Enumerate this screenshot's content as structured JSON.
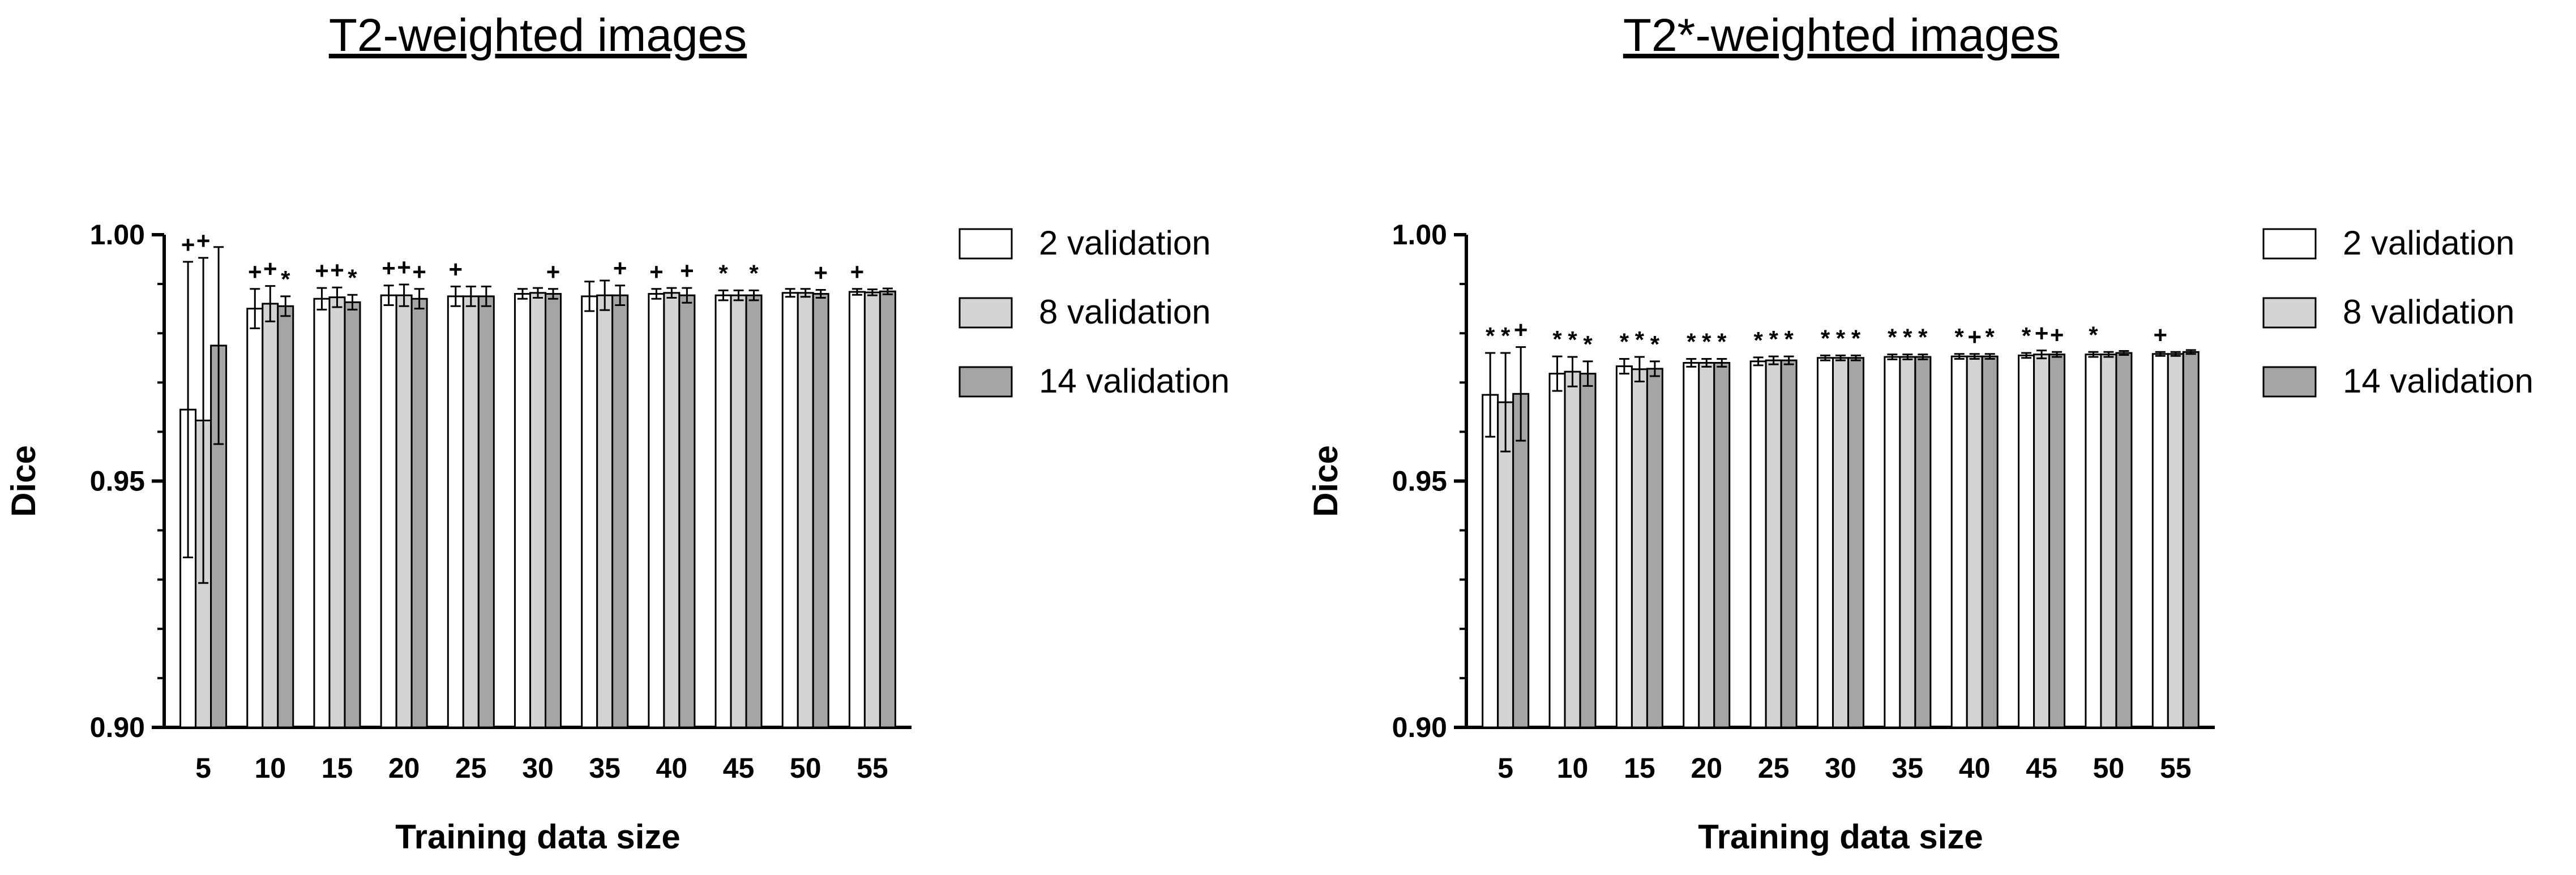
{
  "chart_data": [
    {
      "type": "bar",
      "title": "T2-weighted images",
      "xlabel": "Training data size",
      "ylabel": "Dice",
      "ylim": [
        0.9,
        1.0
      ],
      "yticks": [
        "0.90",
        "0.95",
        "1.00"
      ],
      "categories": [
        "5",
        "10",
        "15",
        "20",
        "25",
        "30",
        "35",
        "40",
        "45",
        "50",
        "55"
      ],
      "legend_position": "right",
      "series": [
        {
          "name": "2 validation",
          "color": "#ffffff",
          "values": [
            0.9645,
            0.985,
            0.987,
            0.9877,
            0.9875,
            0.988,
            0.9875,
            0.988,
            0.9877,
            0.9882,
            0.9884
          ],
          "errors": [
            0.03,
            0.004,
            0.0022,
            0.002,
            0.002,
            0.001,
            0.003,
            0.001,
            0.001,
            0.0008,
            0.0006
          ],
          "marks": [
            "+",
            "+",
            "+",
            "+",
            "+",
            "",
            "",
            "+",
            "*",
            "",
            "+"
          ]
        },
        {
          "name": "8 validation",
          "color": "#d3d3d3",
          "values": [
            0.9623,
            0.986,
            0.9873,
            0.9877,
            0.9875,
            0.9882,
            0.9877,
            0.9882,
            0.9877,
            0.9882,
            0.9883
          ],
          "errors": [
            0.033,
            0.0036,
            0.002,
            0.0022,
            0.002,
            0.001,
            0.003,
            0.001,
            0.001,
            0.0008,
            0.0006
          ],
          "marks": [
            "+",
            "+",
            "+",
            "+",
            "",
            "",
            "",
            "",
            "",
            "",
            ""
          ]
        },
        {
          "name": "14 validation",
          "color": "#a5a5a5",
          "values": [
            0.9775,
            0.9855,
            0.9863,
            0.987,
            0.9875,
            0.988,
            0.9877,
            0.9877,
            0.9877,
            0.988,
            0.9885
          ],
          "errors": [
            0.02,
            0.002,
            0.0015,
            0.002,
            0.002,
            0.001,
            0.002,
            0.0015,
            0.001,
            0.0008,
            0.0006
          ],
          "marks": [
            "",
            "*",
            "*",
            "+",
            "",
            "+",
            "+",
            "+",
            "*",
            "+",
            ""
          ]
        }
      ]
    },
    {
      "type": "bar",
      "title": "T2*-weighted images",
      "xlabel": "Training data size",
      "ylabel": "Dice",
      "ylim": [
        0.9,
        1.0
      ],
      "yticks": [
        "0.90",
        "0.95",
        "1.00"
      ],
      "categories": [
        "5",
        "10",
        "15",
        "20",
        "25",
        "30",
        "35",
        "40",
        "45",
        "50",
        "55"
      ],
      "legend_position": "right",
      "series": [
        {
          "name": "2 validation",
          "color": "#ffffff",
          "values": [
            0.9675,
            0.9718,
            0.9733,
            0.974,
            0.9743,
            0.975,
            0.9752,
            0.9753,
            0.9755,
            0.9757,
            0.9758
          ],
          "errors": [
            0.0085,
            0.0035,
            0.0015,
            0.0008,
            0.0008,
            0.0005,
            0.0005,
            0.0005,
            0.0005,
            0.0005,
            0.0004
          ],
          "marks": [
            "*",
            "*",
            "*",
            "*",
            "*",
            "*",
            "*",
            "*",
            "*",
            "*",
            "+"
          ]
        },
        {
          "name": "8 validation",
          "color": "#d3d3d3",
          "values": [
            0.966,
            0.9722,
            0.9727,
            0.974,
            0.9745,
            0.975,
            0.9752,
            0.9753,
            0.9757,
            0.9757,
            0.9758
          ],
          "errors": [
            0.01,
            0.003,
            0.0025,
            0.0008,
            0.0008,
            0.0005,
            0.0005,
            0.0005,
            0.0008,
            0.0005,
            0.0004
          ],
          "marks": [
            "*",
            "*",
            "*",
            "*",
            "*",
            "*",
            "*",
            "+",
            "+",
            "",
            ""
          ]
        },
        {
          "name": "14 validation",
          "color": "#a5a5a5",
          "values": [
            0.9677,
            0.9718,
            0.9728,
            0.974,
            0.9745,
            0.975,
            0.9752,
            0.9753,
            0.9757,
            0.976,
            0.9762
          ],
          "errors": [
            0.0095,
            0.0025,
            0.0015,
            0.0008,
            0.0008,
            0.0005,
            0.0005,
            0.0005,
            0.0005,
            0.0004,
            0.0004
          ],
          "marks": [
            "+",
            "*",
            "*",
            "*",
            "*",
            "*",
            "*",
            "*",
            "+",
            "",
            ""
          ]
        }
      ]
    }
  ]
}
